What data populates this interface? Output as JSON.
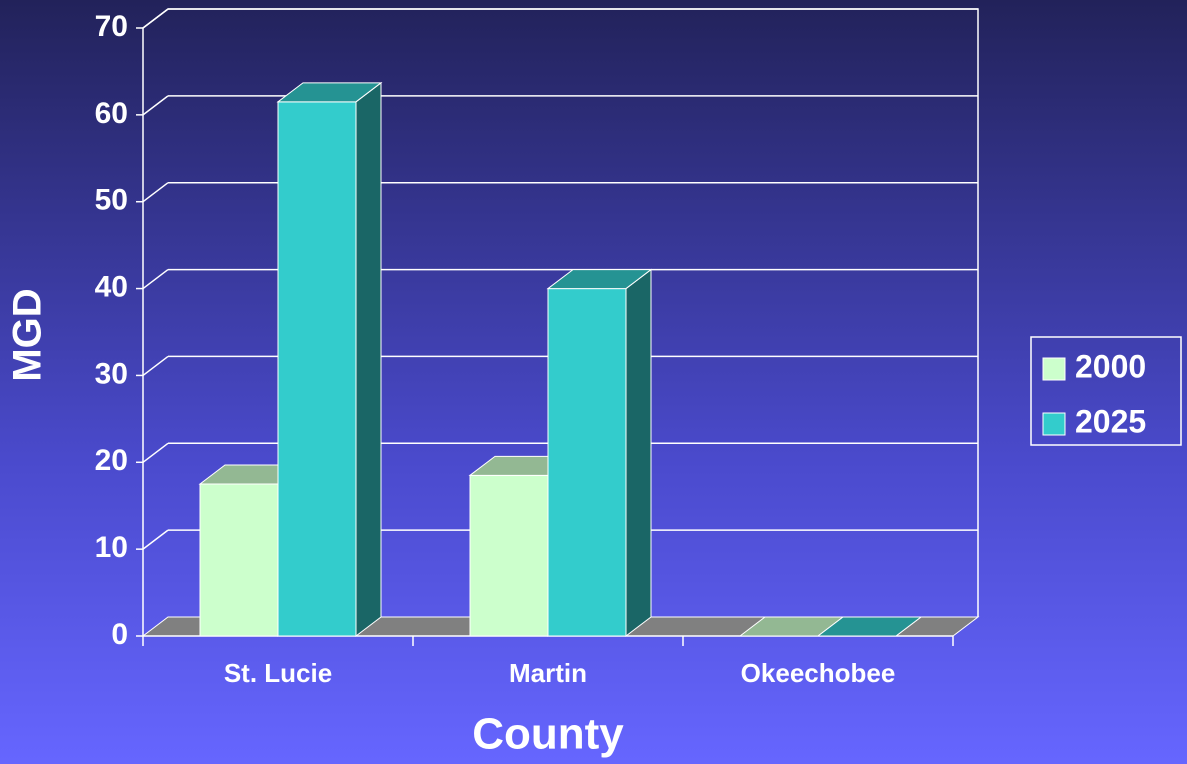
{
  "chart_data": {
    "type": "bar3d",
    "x_label": "County",
    "y_label": "MGD",
    "categories": [
      "St. Lucie",
      "Martin",
      "Okeechobee"
    ],
    "series": [
      {
        "name": "2000",
        "color": "#ccffcc",
        "values": [
          17.5,
          18.5,
          0
        ]
      },
      {
        "name": "2025",
        "color": "#33cccc",
        "values": [
          61.5,
          40,
          0
        ]
      }
    ],
    "ylim": [
      0,
      70
    ],
    "yticks": [
      0,
      10,
      20,
      30,
      40,
      50,
      60,
      70
    ],
    "grid": true,
    "legend": "right"
  }
}
